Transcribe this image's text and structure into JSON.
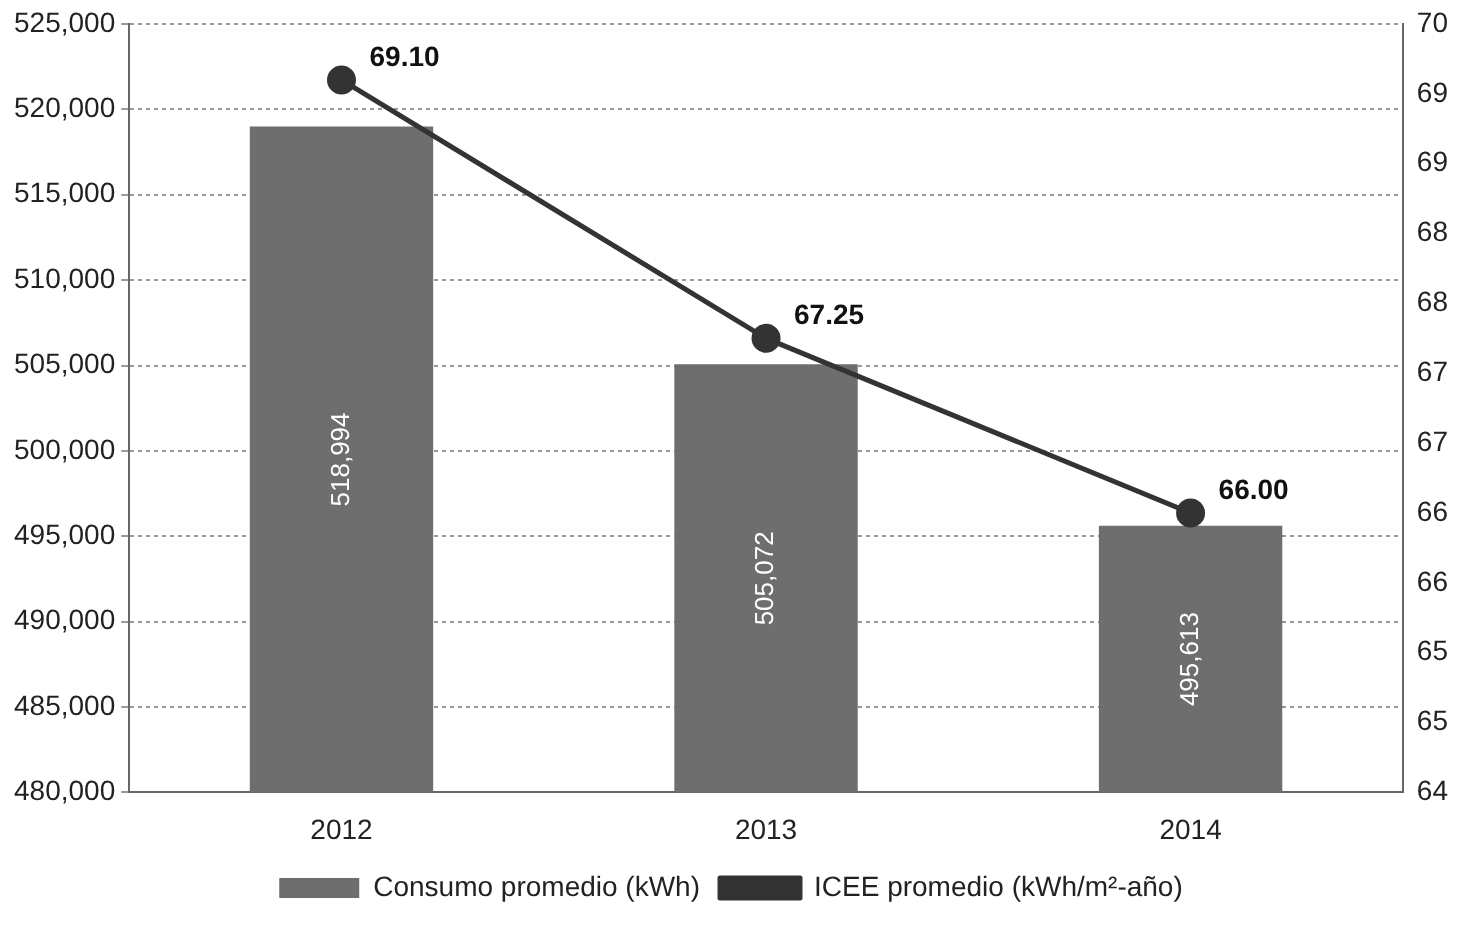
{
  "chart_data": {
    "type": "bar",
    "categories": [
      "2012",
      "2013",
      "2014"
    ],
    "series": [
      {
        "name": "Consumo promedio (kWh)",
        "type": "bar",
        "color": "#6e6e6e",
        "values": [
          518994,
          505072,
          495613
        ],
        "value_labels": [
          "518,994",
          "505,072",
          "495,613"
        ]
      },
      {
        "name": "ICEE promedio (kWh/m²-año)",
        "type": "line",
        "axis": "y2",
        "color": "#333333",
        "values": [
          69.1,
          67.25,
          66.0
        ],
        "value_labels": [
          "69.10",
          "67.25",
          "66.00"
        ]
      }
    ],
    "ylim": [
      480000,
      525000
    ],
    "yticks": [
      {
        "value": 480000,
        "label": "480,000"
      },
      {
        "value": 485000,
        "label": "485,000"
      },
      {
        "value": 490000,
        "label": "490,000"
      },
      {
        "value": 495000,
        "label": "495,000"
      },
      {
        "value": 500000,
        "label": "500,000"
      },
      {
        "value": 505000,
        "label": "505,000"
      },
      {
        "value": 510000,
        "label": "510,000"
      },
      {
        "value": 515000,
        "label": "515,000"
      },
      {
        "value": 520000,
        "label": "520,000"
      },
      {
        "value": 525000,
        "label": "525,000"
      }
    ],
    "y2lim": [
      64,
      69.5
    ],
    "y2ticks": [
      {
        "value": 64,
        "label": "64"
      },
      {
        "value": 64.5,
        "label": "65"
      },
      {
        "value": 65,
        "label": "65"
      },
      {
        "value": 65.5,
        "label": "66"
      },
      {
        "value": 66,
        "label": "66"
      },
      {
        "value": 66.5,
        "label": "67"
      },
      {
        "value": 67,
        "label": "67"
      },
      {
        "value": 67.5,
        "label": "68"
      },
      {
        "value": 68,
        "label": "68"
      },
      {
        "value": 68.5,
        "label": "69"
      },
      {
        "value": 69,
        "label": "69"
      },
      {
        "value": 69.5,
        "label": "70"
      }
    ],
    "grid": "y",
    "legend": "bottom",
    "marker": "circle",
    "line_style": "solid"
  }
}
